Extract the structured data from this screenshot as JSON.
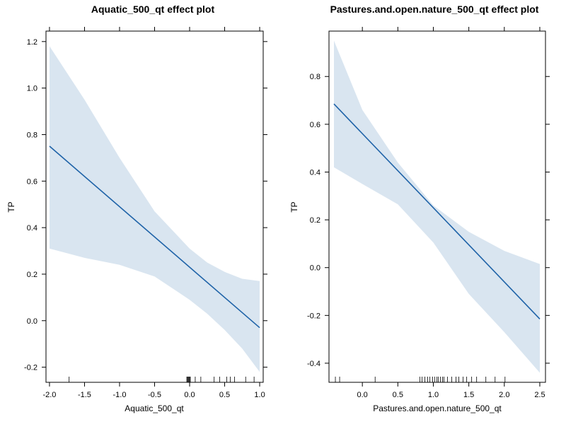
{
  "chart_data": [
    {
      "type": "line",
      "title": "Aquatic_500_qt effect plot",
      "xlabel": "Aquatic_500_qt",
      "ylabel": "TP",
      "xlim": [
        -2.05,
        1.05
      ],
      "ylim": [
        -0.265,
        1.245
      ],
      "x_ticks": [
        -2.0,
        -1.5,
        -1.0,
        -0.5,
        0.0,
        0.5,
        1.0
      ],
      "x_tick_labels": [
        "-2.0",
        "-1.5",
        "-1.0",
        "-0.5",
        "0.0",
        "0.5",
        "1.0"
      ],
      "y_ticks": [
        -0.2,
        0.0,
        0.2,
        0.4,
        0.6,
        0.8,
        1.0,
        1.2
      ],
      "y_tick_labels": [
        "-0.2",
        "0.0",
        "0.2",
        "0.4",
        "0.6",
        "0.8",
        "1.0",
        "1.2"
      ],
      "grid": false,
      "line_color": "#1f63a8",
      "band_color": "#d9e5f0",
      "series": [
        {
          "x": [
            -2.0,
            1.0
          ],
          "y": [
            0.75,
            -0.03
          ]
        }
      ],
      "confidence_band": {
        "x": [
          -2.0,
          -1.5,
          -1.0,
          -0.5,
          0.0,
          0.25,
          0.5,
          0.75,
          1.0
        ],
        "upper": [
          1.18,
          0.95,
          0.7,
          0.47,
          0.31,
          0.25,
          0.21,
          0.18,
          0.17
        ],
        "lower": [
          0.31,
          0.27,
          0.24,
          0.19,
          0.09,
          0.03,
          -0.04,
          -0.12,
          -0.22
        ]
      },
      "rug": [
        -1.72,
        -0.04,
        -0.03,
        -0.02,
        -0.01,
        0.0,
        0.01,
        0.08,
        0.16,
        0.35,
        0.43,
        0.53,
        0.58,
        0.64,
        0.8,
        0.92
      ]
    },
    {
      "type": "line",
      "title": "Pastures.and.open.nature_500_qt effect plot",
      "xlabel": "Pastures.and.open.nature_500_qt",
      "ylabel": "TP",
      "xlim": [
        -0.47,
        2.58
      ],
      "ylim": [
        -0.48,
        0.99
      ],
      "x_ticks": [
        0.0,
        0.5,
        1.0,
        1.5,
        2.0,
        2.5
      ],
      "x_tick_labels": [
        "0.0",
        "0.5",
        "1.0",
        "1.5",
        "2.0",
        "2.5"
      ],
      "y_ticks": [
        -0.4,
        -0.2,
        0.0,
        0.2,
        0.4,
        0.6,
        0.8
      ],
      "y_tick_labels": [
        "-0.4",
        "-0.2",
        "0.0",
        "0.2",
        "0.4",
        "0.6",
        "0.8"
      ],
      "grid": false,
      "line_color": "#1f63a8",
      "band_color": "#d9e5f0",
      "series": [
        {
          "x": [
            -0.4,
            2.5
          ],
          "y": [
            0.685,
            -0.215
          ]
        }
      ],
      "confidence_band": {
        "x": [
          -0.4,
          0.0,
          0.5,
          1.0,
          1.5,
          2.0,
          2.5
        ],
        "upper": [
          0.95,
          0.66,
          0.44,
          0.26,
          0.15,
          0.07,
          0.015
        ],
        "lower": [
          0.42,
          0.35,
          0.265,
          0.105,
          -0.11,
          -0.27,
          -0.44
        ]
      },
      "rug": [
        -0.38,
        -0.32,
        0.18,
        0.81,
        0.84,
        0.88,
        0.92,
        0.95,
        0.99,
        1.02,
        1.05,
        1.07,
        1.1,
        1.13,
        1.15,
        1.2,
        1.26,
        1.32,
        1.36,
        1.42,
        1.47,
        1.54,
        1.61,
        1.74,
        1.87,
        2.01
      ]
    }
  ]
}
